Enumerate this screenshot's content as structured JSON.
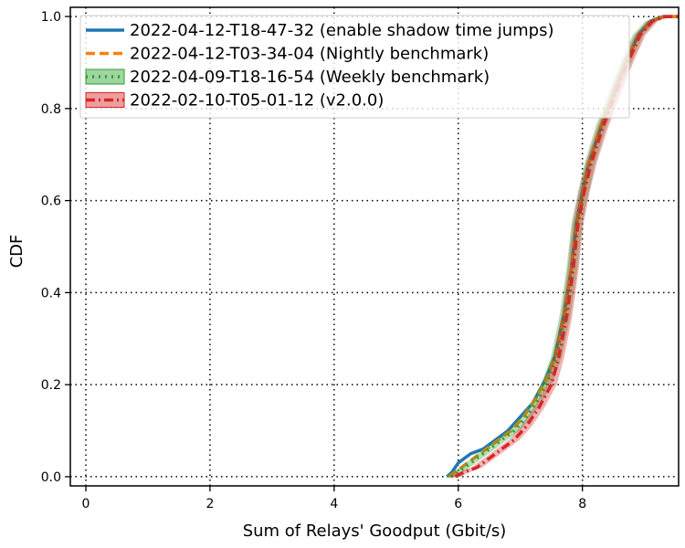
{
  "chart_data": {
    "type": "line",
    "title": "",
    "xlabel": "Sum of Relays' Goodput (Gbit/s)",
    "ylabel": "CDF",
    "xlim": [
      -0.25,
      9.55
    ],
    "ylim": [
      -0.02,
      1.02
    ],
    "x_ticks": [
      0,
      2,
      4,
      6,
      8
    ],
    "x_tick_labels": [
      "0",
      "2",
      "4",
      "6",
      "8"
    ],
    "y_ticks": [
      0.0,
      0.2,
      0.4,
      0.6,
      0.8,
      1.0
    ],
    "y_tick_labels": [
      "0.0",
      "0.2",
      "0.4",
      "0.6",
      "0.8",
      "1.0"
    ],
    "grid": true,
    "legend_position": "top-left",
    "series": [
      {
        "name": "2022-04-12-T18-47-32 (enable shadow time jumps)",
        "color": "#1f77b4",
        "style": "solid",
        "band": false,
        "points": [
          [
            5.82,
            0.0
          ],
          [
            5.9,
            0.01
          ],
          [
            6.0,
            0.03
          ],
          [
            6.2,
            0.05
          ],
          [
            6.4,
            0.06
          ],
          [
            6.6,
            0.08
          ],
          [
            6.8,
            0.1
          ],
          [
            7.0,
            0.13
          ],
          [
            7.2,
            0.16
          ],
          [
            7.4,
            0.21
          ],
          [
            7.55,
            0.26
          ],
          [
            7.7,
            0.35
          ],
          [
            7.82,
            0.45
          ],
          [
            7.9,
            0.55
          ],
          [
            8.0,
            0.62
          ],
          [
            8.1,
            0.68
          ],
          [
            8.3,
            0.76
          ],
          [
            8.5,
            0.83
          ],
          [
            8.7,
            0.9
          ],
          [
            8.9,
            0.96
          ],
          [
            9.1,
            0.99
          ],
          [
            9.3,
            1.0
          ],
          [
            9.55,
            1.0
          ]
        ]
      },
      {
        "name": "2022-04-12-T03-34-04 (Nightly benchmark)",
        "color": "#ff7f0e",
        "style": "dashed",
        "band": false,
        "points": [
          [
            5.85,
            0.0
          ],
          [
            5.95,
            0.01
          ],
          [
            6.05,
            0.02
          ],
          [
            6.25,
            0.04
          ],
          [
            6.45,
            0.06
          ],
          [
            6.65,
            0.08
          ],
          [
            6.85,
            0.1
          ],
          [
            7.05,
            0.13
          ],
          [
            7.25,
            0.17
          ],
          [
            7.45,
            0.22
          ],
          [
            7.58,
            0.27
          ],
          [
            7.72,
            0.36
          ],
          [
            7.83,
            0.46
          ],
          [
            7.91,
            0.55
          ],
          [
            8.01,
            0.62
          ],
          [
            8.12,
            0.69
          ],
          [
            8.32,
            0.77
          ],
          [
            8.52,
            0.84
          ],
          [
            8.72,
            0.91
          ],
          [
            8.92,
            0.96
          ],
          [
            9.12,
            0.99
          ],
          [
            9.32,
            1.0
          ],
          [
            9.55,
            1.0
          ]
        ]
      },
      {
        "name": "2022-04-09-T18-16-54 (Weekly benchmark)",
        "color": "#2ca02c",
        "style": "dotted",
        "band": true,
        "points": [
          [
            5.88,
            0.0
          ],
          [
            6.0,
            0.01
          ],
          [
            6.1,
            0.02
          ],
          [
            6.3,
            0.04
          ],
          [
            6.5,
            0.06
          ],
          [
            6.7,
            0.08
          ],
          [
            6.9,
            0.1
          ],
          [
            7.1,
            0.13
          ],
          [
            7.3,
            0.17
          ],
          [
            7.45,
            0.21
          ],
          [
            7.58,
            0.26
          ],
          [
            7.72,
            0.35
          ],
          [
            7.83,
            0.45
          ],
          [
            7.91,
            0.55
          ],
          [
            8.02,
            0.62
          ],
          [
            8.12,
            0.68
          ],
          [
            8.3,
            0.76
          ],
          [
            8.5,
            0.83
          ],
          [
            8.7,
            0.9
          ],
          [
            8.9,
            0.96
          ],
          [
            9.1,
            0.99
          ],
          [
            9.3,
            1.0
          ],
          [
            9.55,
            1.0
          ]
        ]
      },
      {
        "name": "2022-02-10-T05-01-12 (v2.0.0)",
        "color": "#d62728",
        "style": "dashdot",
        "band": true,
        "points": [
          [
            5.95,
            0.0
          ],
          [
            6.1,
            0.01
          ],
          [
            6.3,
            0.02
          ],
          [
            6.5,
            0.04
          ],
          [
            6.7,
            0.06
          ],
          [
            6.9,
            0.08
          ],
          [
            7.1,
            0.11
          ],
          [
            7.3,
            0.15
          ],
          [
            7.5,
            0.2
          ],
          [
            7.62,
            0.26
          ],
          [
            7.75,
            0.35
          ],
          [
            7.85,
            0.45
          ],
          [
            7.93,
            0.55
          ],
          [
            8.03,
            0.62
          ],
          [
            8.14,
            0.68
          ],
          [
            8.33,
            0.76
          ],
          [
            8.53,
            0.83
          ],
          [
            8.73,
            0.9
          ],
          [
            8.93,
            0.96
          ],
          [
            9.13,
            0.99
          ],
          [
            9.33,
            1.0
          ],
          [
            9.55,
            1.0
          ]
        ]
      }
    ]
  }
}
